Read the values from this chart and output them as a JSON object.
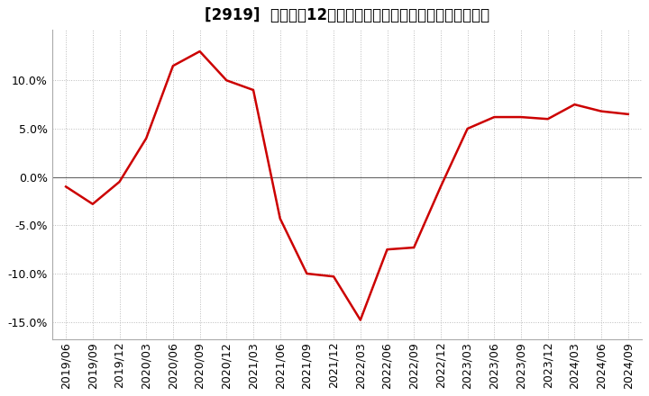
{
  "title": "[2919]  売上高の12か月移動合計の対前年同期増減率の推移",
  "line_color": "#cc0000",
  "background_color": "#ffffff",
  "plot_bg_color": "#ffffff",
  "grid_color": "#bbbbbb",
  "zero_line_color": "#666666",
  "ylim": [
    -0.168,
    0.152
  ],
  "yticks": [
    -0.15,
    -0.1,
    -0.05,
    0.0,
    0.05,
    0.1
  ],
  "dates": [
    "2019/06",
    "2019/09",
    "2019/12",
    "2020/03",
    "2020/06",
    "2020/09",
    "2020/12",
    "2021/03",
    "2021/06",
    "2021/09",
    "2021/12",
    "2022/03",
    "2022/06",
    "2022/09",
    "2022/12",
    "2023/03",
    "2023/06",
    "2023/09",
    "2023/12",
    "2024/03",
    "2024/06",
    "2024/09"
  ],
  "values": [
    -0.01,
    -0.028,
    -0.005,
    0.04,
    0.115,
    0.13,
    0.1,
    0.09,
    -0.043,
    -0.1,
    -0.103,
    -0.148,
    -0.075,
    -0.073,
    -0.01,
    0.05,
    0.062,
    0.062,
    0.06,
    0.075,
    0.068,
    0.065
  ],
  "title_fontsize": 12,
  "tick_fontsize": 9,
  "line_width": 1.8
}
